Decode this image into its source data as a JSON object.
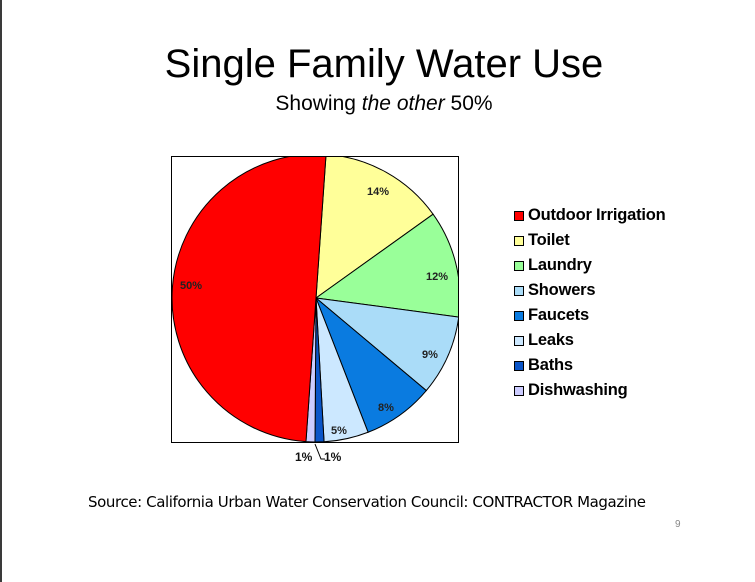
{
  "slide": {
    "title": "Single Family Water Use",
    "subtitle_prefix": "Showing ",
    "subtitle_emphasis": "the other",
    "subtitle_suffix": " 50%",
    "source": "Source: California Urban Water Conservation Council: CONTRACTOR Magazine",
    "page_number": "9"
  },
  "chart_data": {
    "type": "pie",
    "title": "Single Family Water Use",
    "subtitle": "Showing the other 50%",
    "categories": [
      "Outdoor Irrigation",
      "Toilet",
      "Laundry",
      "Showers",
      "Faucets",
      "Leaks",
      "Baths",
      "Dishwashing"
    ],
    "values": [
      50,
      14,
      12,
      9,
      8,
      5,
      1,
      1
    ],
    "labels": [
      "50%",
      "14%",
      "12%",
      "9%",
      "8%",
      "5%",
      "1%",
      "1%"
    ],
    "colors": [
      "#FF0000",
      "#FFFF99",
      "#99FF99",
      "#AADCF8",
      "#0A7BE0",
      "#CCE8FF",
      "#0A55C8",
      "#CCCCFF"
    ],
    "start_angle_deg": 4,
    "direction": "clockwise",
    "slice_order": [
      "Toilet",
      "Laundry",
      "Showers",
      "Faucets",
      "Leaks",
      "Baths",
      "Dishwashing",
      "Outdoor Irrigation"
    ],
    "legend_position": "right",
    "units": "%"
  },
  "legend": {
    "items": [
      {
        "label": "Outdoor Irrigation",
        "color": "#FF0000"
      },
      {
        "label": "Toilet",
        "color": "#FFFF99"
      },
      {
        "label": "Laundry",
        "color": "#99FF99"
      },
      {
        "label": "Showers",
        "color": "#AADCF8"
      },
      {
        "label": "Faucets",
        "color": "#0A7BE0"
      },
      {
        "label": "Leaks",
        "color": "#CCE8FF"
      },
      {
        "label": "Baths",
        "color": "#0A55C8"
      },
      {
        "label": "Dishwashing",
        "color": "#CCCCFF"
      }
    ]
  }
}
